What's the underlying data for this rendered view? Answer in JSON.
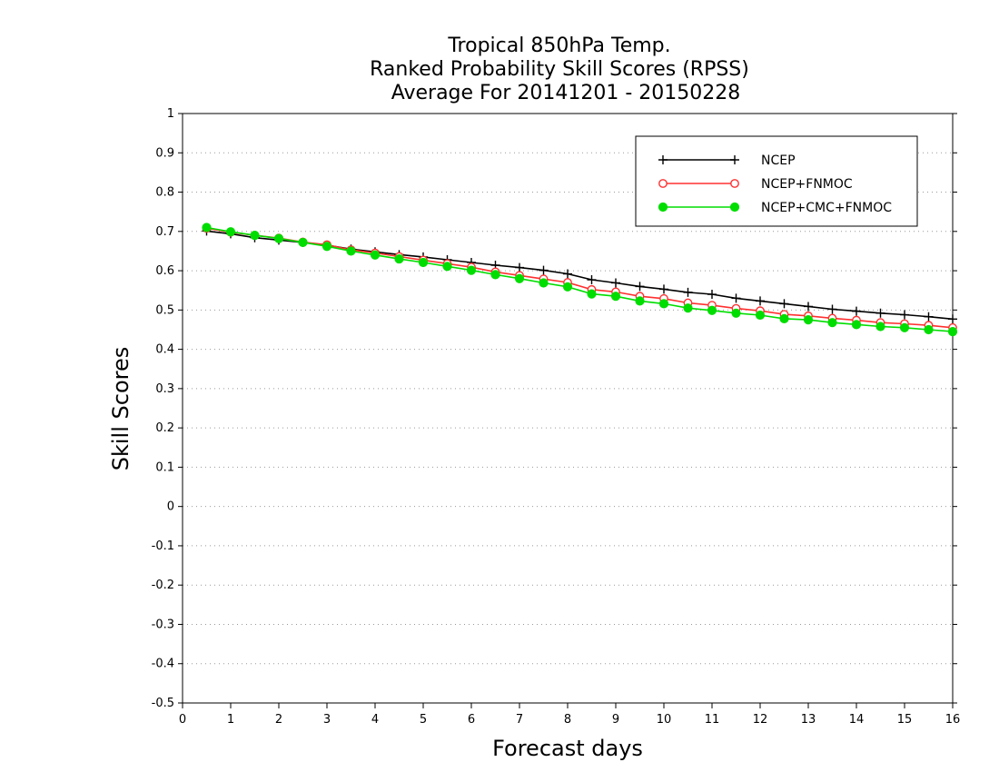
{
  "chart_data": {
    "type": "line",
    "title": [
      "Tropical 850hPa Temp.",
      "Ranked Probability Skill Scores (RPSS)",
      "Average For 20141201 - 20150228"
    ],
    "xlabel": "Forecast days",
    "ylabel": "Skill Scores",
    "xlim": [
      0,
      16
    ],
    "ylim": [
      -0.5,
      1
    ],
    "xticks": [
      0,
      1,
      2,
      3,
      4,
      5,
      6,
      7,
      8,
      9,
      10,
      11,
      12,
      13,
      14,
      15,
      16
    ],
    "yticks": [
      -0.5,
      -0.4,
      -0.3,
      -0.2,
      -0.1,
      0,
      0.1,
      0.2,
      0.3,
      0.4,
      0.5,
      0.6,
      0.7,
      0.8,
      0.9,
      1
    ],
    "ytick_labels": [
      "-0.5",
      "-0.4",
      "-0.3",
      "-0.2",
      "-0.1",
      "0",
      "0.1",
      "0.2",
      "0.3",
      "0.4",
      "0.5",
      "0.6",
      "0.7",
      "0.8",
      "0.9",
      "1"
    ],
    "grid": "horizontal dotted",
    "legend_position": "top-right",
    "x": [
      0.5,
      1,
      1.5,
      2,
      2.5,
      3,
      3.5,
      4,
      4.5,
      5,
      5.5,
      6,
      6.5,
      7,
      7.5,
      8,
      8.5,
      9,
      9.5,
      10,
      10.5,
      11,
      11.5,
      12,
      12.5,
      13,
      13.5,
      14,
      14.5,
      15,
      15.5,
      16
    ],
    "series": [
      {
        "name": "NCEP",
        "color": "#000000",
        "marker": "plus",
        "values": [
          0.701,
          0.694,
          0.684,
          0.678,
          0.672,
          0.665,
          0.655,
          0.648,
          0.641,
          0.635,
          0.628,
          0.621,
          0.614,
          0.608,
          0.601,
          0.592,
          0.577,
          0.569,
          0.56,
          0.553,
          0.545,
          0.54,
          0.53,
          0.523,
          0.516,
          0.509,
          0.502,
          0.497,
          0.492,
          0.488,
          0.483,
          0.477
        ]
      },
      {
        "name": "NCEP+FNMOC",
        "color": "#ff3030",
        "marker": "open-circle",
        "values": [
          0.708,
          0.698,
          0.69,
          0.683,
          0.673,
          0.666,
          0.653,
          0.645,
          0.636,
          0.627,
          0.618,
          0.609,
          0.597,
          0.588,
          0.579,
          0.57,
          0.552,
          0.546,
          0.535,
          0.529,
          0.518,
          0.512,
          0.504,
          0.498,
          0.489,
          0.485,
          0.479,
          0.474,
          0.468,
          0.465,
          0.461,
          0.455
        ]
      },
      {
        "name": "NCEP+CMC+FNMOC",
        "color": "#00dd00",
        "marker": "filled-circle",
        "values": [
          0.71,
          0.699,
          0.69,
          0.682,
          0.672,
          0.662,
          0.65,
          0.64,
          0.63,
          0.621,
          0.611,
          0.601,
          0.59,
          0.58,
          0.569,
          0.559,
          0.541,
          0.535,
          0.523,
          0.516,
          0.505,
          0.499,
          0.492,
          0.487,
          0.478,
          0.475,
          0.468,
          0.463,
          0.458,
          0.455,
          0.45,
          0.445
        ]
      }
    ]
  }
}
